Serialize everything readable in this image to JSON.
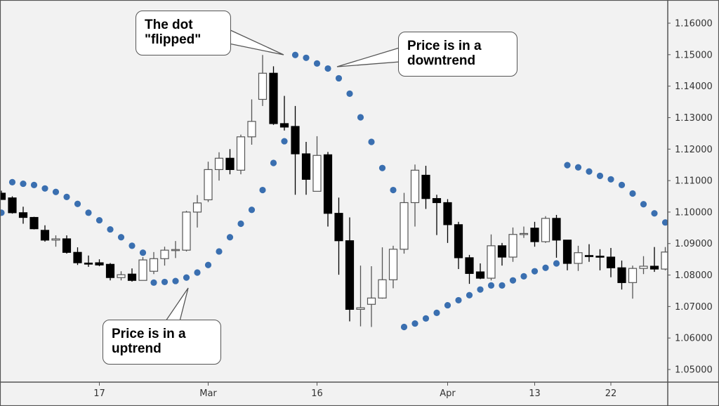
{
  "chart_data": {
    "type": "candlestick",
    "title": "",
    "xlabel": "",
    "ylabel": "",
    "ylim": [
      1.045,
      1.1665
    ],
    "grid": false,
    "colors": {
      "background": "#f2f2f2",
      "bull_body": "#ffffff",
      "bear_body": "#000000",
      "sar_dot": "#3a6fb0",
      "axis": "#555555"
    },
    "y_ticks": [
      "1.16000",
      "1.15000",
      "1.14000",
      "1.13000",
      "1.12000",
      "1.11000",
      "1.10000",
      "1.09000",
      "1.08000",
      "1.07000",
      "1.06000",
      "1.05000"
    ],
    "x_ticks": [
      {
        "label": "17",
        "index": 9
      },
      {
        "label": "Mar",
        "index": 19
      },
      {
        "label": "16",
        "index": 29
      },
      {
        "label": "Apr",
        "index": 41
      },
      {
        "label": "13",
        "index": 49
      },
      {
        "label": "22",
        "index": 56
      }
    ],
    "candle_fields": [
      "open",
      "high",
      "low",
      "close"
    ],
    "candles": [
      [
        1.106,
        1.1068,
        1.104,
        1.104
      ],
      [
        1.1045,
        1.105,
        1.0995,
        1.0998
      ],
      [
        1.0998,
        1.1017,
        1.0963,
        1.0983
      ],
      [
        1.0983,
        1.0985,
        1.0945,
        1.0947
      ],
      [
        1.0942,
        1.0958,
        1.0906,
        1.0911
      ],
      [
        1.0911,
        1.0926,
        1.089,
        1.0915
      ],
      [
        1.0915,
        1.0926,
        1.0868,
        1.0872
      ],
      [
        1.0872,
        1.0888,
        1.0832,
        1.0839
      ],
      [
        1.0838,
        1.0862,
        1.0826,
        1.0836
      ],
      [
        1.0839,
        1.085,
        1.0828,
        1.0832
      ],
      [
        1.0834,
        1.0838,
        1.0783,
        1.0792
      ],
      [
        1.0792,
        1.0812,
        1.0783,
        1.0801
      ],
      [
        1.0803,
        1.0821,
        1.0779,
        1.0783
      ],
      [
        1.0783,
        1.0857,
        1.0783,
        1.0848
      ],
      [
        1.0812,
        1.0873,
        1.0803,
        1.0852
      ],
      [
        1.0852,
        1.089,
        1.083,
        1.0879
      ],
      [
        1.088,
        1.0908,
        1.0854,
        1.0881
      ],
      [
        1.0879,
        1.1004,
        1.0875,
        1.1
      ],
      [
        1.1,
        1.1054,
        1.0951,
        1.1029
      ],
      [
        1.1039,
        1.116,
        1.1032,
        1.1135
      ],
      [
        1.1135,
        1.119,
        1.11,
        1.1171
      ],
      [
        1.1171,
        1.12,
        1.112,
        1.1135
      ],
      [
        1.1133,
        1.1246,
        1.112,
        1.1239
      ],
      [
        1.1239,
        1.1358,
        1.1214,
        1.1288
      ],
      [
        1.1358,
        1.1499,
        1.1337,
        1.1441
      ],
      [
        1.1441,
        1.1463,
        1.1277,
        1.1281
      ],
      [
        1.1281,
        1.1369,
        1.1259,
        1.127
      ],
      [
        1.1272,
        1.1337,
        1.1055,
        1.1185
      ],
      [
        1.1185,
        1.1223,
        1.1055,
        1.1104
      ],
      [
        1.1066,
        1.1241,
        1.1066,
        1.118
      ],
      [
        1.1182,
        1.1191,
        1.0954,
        1.0996
      ],
      [
        1.0996,
        1.1046,
        1.0801,
        1.0909
      ],
      [
        1.0909,
        1.0983,
        1.0653,
        1.0691
      ],
      [
        1.0691,
        1.083,
        1.0637,
        1.0696
      ],
      [
        1.0707,
        1.0828,
        1.0635,
        1.0727
      ],
      [
        1.0727,
        1.0888,
        1.0725,
        1.0785
      ],
      [
        1.0785,
        1.0893,
        1.0758,
        1.0882
      ],
      [
        1.0882,
        1.1061,
        1.0868,
        1.103
      ],
      [
        1.103,
        1.1151,
        1.0954,
        1.1133
      ],
      [
        1.1117,
        1.1147,
        1.101,
        1.1043
      ],
      [
        1.1043,
        1.1055,
        1.0927,
        1.103
      ],
      [
        1.103,
        1.1041,
        1.0902,
        1.096
      ],
      [
        1.096,
        1.0969,
        1.0819,
        1.0855
      ],
      [
        1.0855,
        1.0864,
        1.0772,
        1.0805
      ],
      [
        1.081,
        1.0837,
        1.0787,
        1.079
      ],
      [
        1.079,
        1.0929,
        1.0783,
        1.0893
      ],
      [
        1.0893,
        1.0902,
        1.083,
        1.0857
      ],
      [
        1.0857,
        1.0951,
        1.0842,
        1.0929
      ],
      [
        1.093,
        1.0954,
        1.0918,
        1.0932
      ],
      [
        1.0949,
        1.0969,
        1.089,
        1.0906
      ],
      [
        1.0906,
        1.0987,
        1.0902,
        1.098
      ],
      [
        1.098,
        1.0991,
        1.0855,
        1.0911
      ],
      [
        1.0911,
        1.0911,
        1.0815,
        1.0837
      ],
      [
        1.0837,
        1.0893,
        1.0813,
        1.0871
      ],
      [
        1.0862,
        1.0898,
        1.0842,
        1.0861
      ],
      [
        1.086,
        1.0882,
        1.0815,
        1.0858
      ],
      [
        1.0857,
        1.0886,
        1.0793,
        1.0823
      ],
      [
        1.0823,
        1.0846,
        1.0754,
        1.0776
      ],
      [
        1.0776,
        1.083,
        1.0725,
        1.0821
      ],
      [
        1.0821,
        1.086,
        1.0803,
        1.0828
      ],
      [
        1.0828,
        1.0889,
        1.081,
        1.0819
      ],
      [
        1.0819,
        1.0889,
        1.0815,
        1.0873
      ]
    ],
    "parabolic_sar": [
      1.0998,
      1.1095,
      1.109,
      1.1086,
      1.1075,
      1.1064,
      1.1048,
      1.1026,
      1.0998,
      1.0974,
      1.0945,
      1.092,
      1.0893,
      1.0871,
      1.0776,
      1.0778,
      1.0781,
      1.0792,
      1.0808,
      1.0832,
      1.0875,
      1.092,
      1.0963,
      1.1007,
      1.107,
      1.1156,
      1.1225,
      1.1499,
      1.149,
      1.1472,
      1.1456,
      1.1425,
      1.1376,
      1.1301,
      1.1223,
      1.114,
      1.107,
      1.0635,
      1.0646,
      1.0662,
      1.068,
      1.0704,
      1.072,
      1.0736,
      1.0754,
      1.0767,
      1.0767,
      1.0783,
      1.0796,
      1.0812,
      1.0823,
      1.0837,
      1.1149,
      1.1142,
      1.1129,
      1.1115,
      1.1104,
      1.1086,
      1.1059,
      1.1025,
      1.0996,
      1.0967
    ],
    "annotations": [
      {
        "text": "The dot\n\"flipped\"",
        "points_to_index": 27
      },
      {
        "text": "Price is in a\ndowntrend",
        "points_to_index": 31
      },
      {
        "text": "Price is in a\nuptrend",
        "points_to_index": 17
      }
    ]
  }
}
